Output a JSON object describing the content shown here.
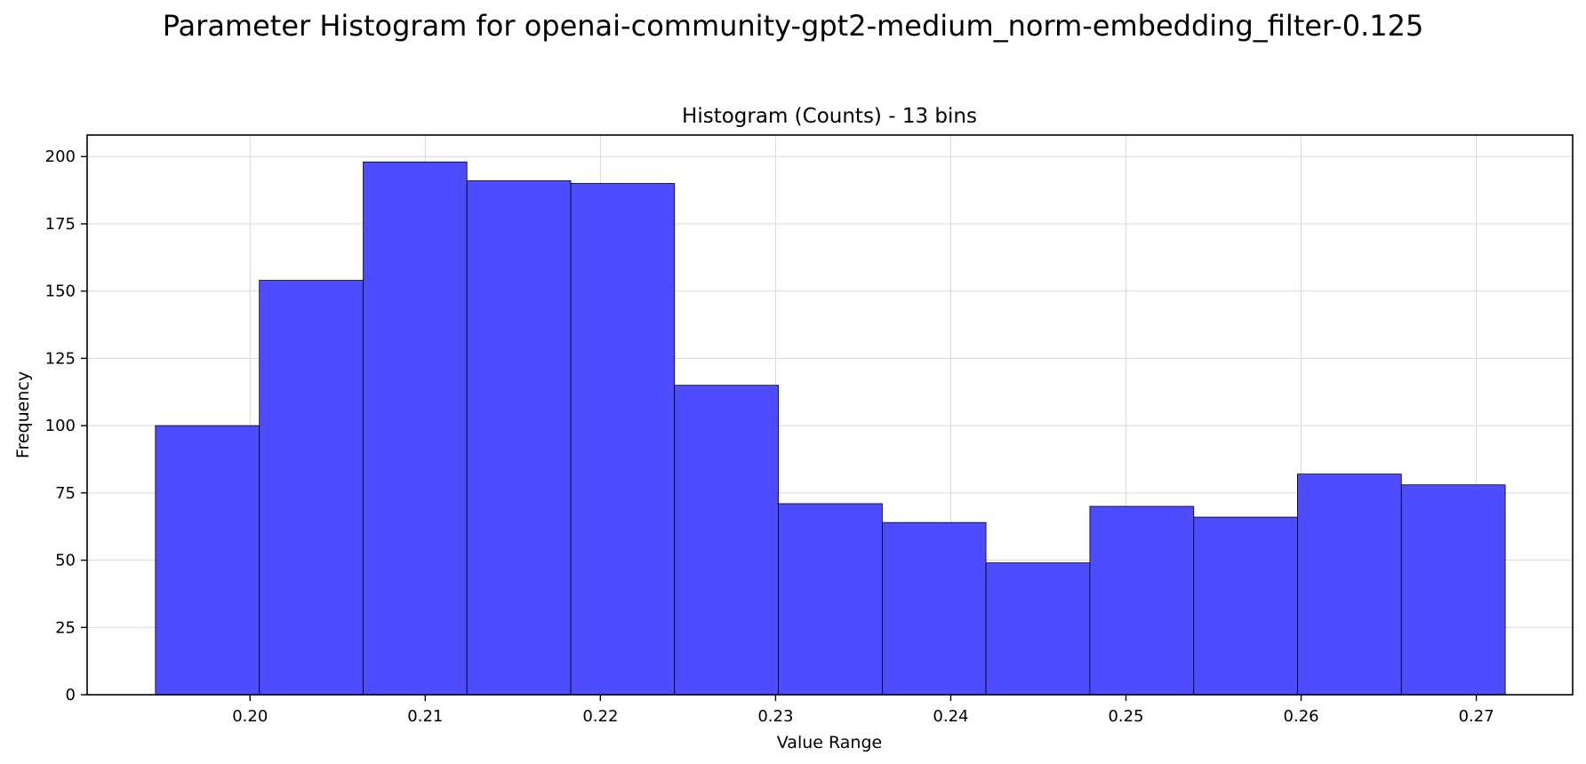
{
  "figure": {
    "suptitle": "Parameter Histogram for openai-community-gpt2-medium_norm-embedding_filter-0.125"
  },
  "chart_data": {
    "type": "bar",
    "title": "Histogram (Counts) - 13 bins",
    "xlabel": "Value Range",
    "ylabel": "Frequency",
    "bin_edges": [
      0.1946,
      0.20053,
      0.20646,
      0.21238,
      0.21831,
      0.22423,
      0.23016,
      0.23609,
      0.24201,
      0.24794,
      0.25387,
      0.25979,
      0.26572,
      0.27165
    ],
    "values": [
      100,
      154,
      198,
      191,
      190,
      115,
      71,
      64,
      49,
      70,
      66,
      82,
      78
    ],
    "xlim": [
      0.1907,
      0.2755
    ],
    "ylim": [
      0,
      208
    ],
    "xticks": [
      0.2,
      0.21,
      0.22,
      0.23,
      0.24,
      0.25,
      0.26,
      0.27
    ],
    "xtick_labels": [
      "0.20",
      "0.21",
      "0.22",
      "0.23",
      "0.24",
      "0.25",
      "0.26",
      "0.27"
    ],
    "yticks": [
      0,
      25,
      50,
      75,
      100,
      125,
      150,
      175,
      200
    ],
    "ytick_labels": [
      "0",
      "25",
      "50",
      "75",
      "100",
      "125",
      "150",
      "175",
      "200"
    ],
    "bar_color": "#4d4dff",
    "edge_color": "#000000",
    "grid": true,
    "legend": false
  }
}
